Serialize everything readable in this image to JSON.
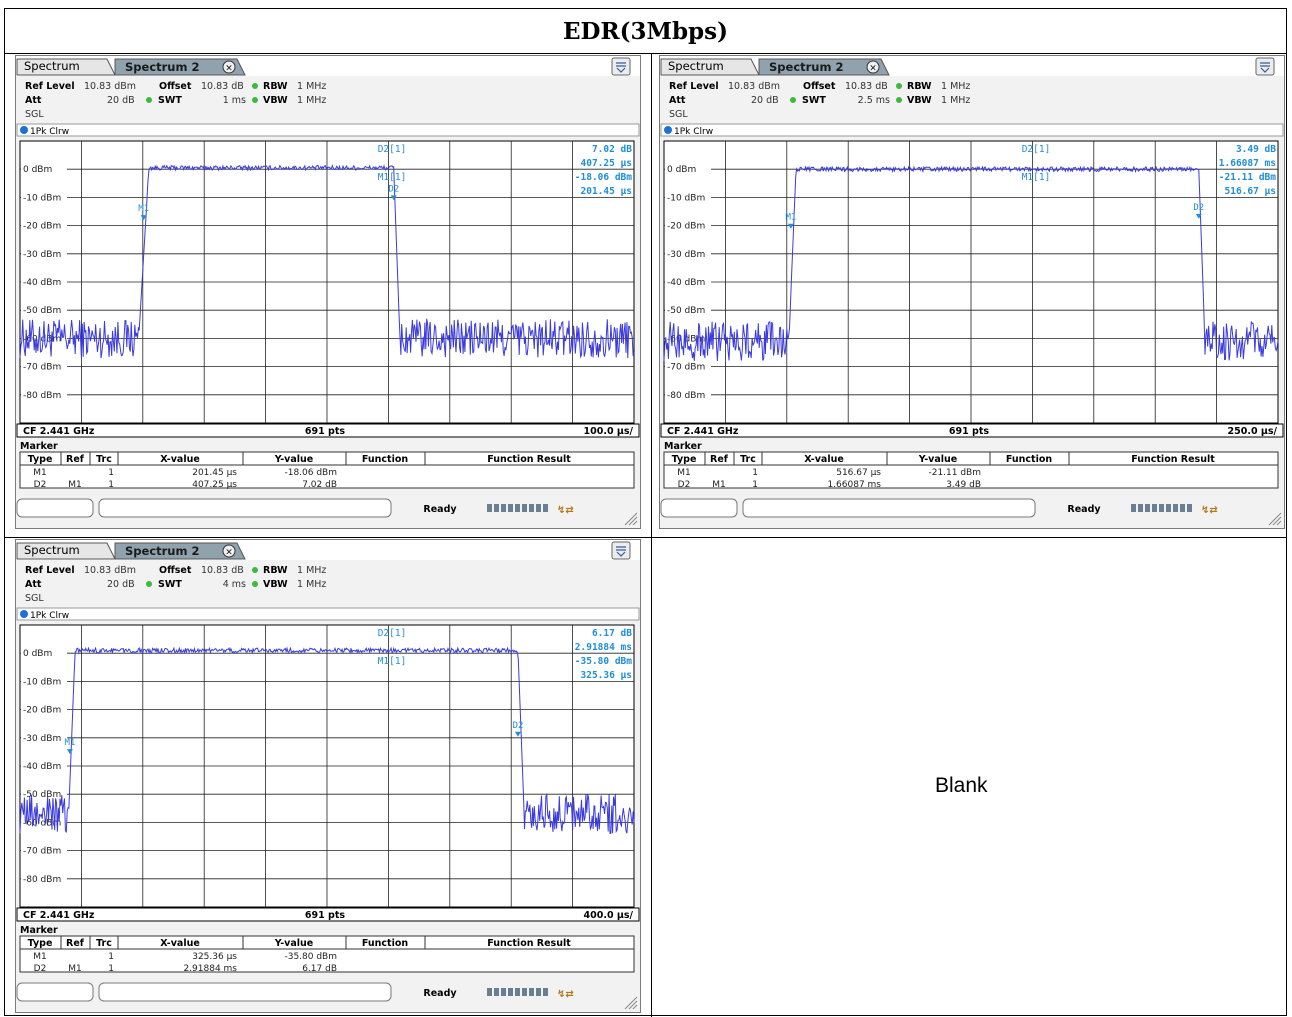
{
  "page_title": "EDR(3Mbps)",
  "blank_label": "Blank",
  "colors": {
    "trace": "#3a3ae0",
    "marker": "#1e8fd8",
    "grid": "#000000",
    "tab_active": "#d8d8d8",
    "tab_inactive": "#8fa8b8"
  },
  "panels": [
    {
      "tab_active": "Spectrum",
      "tab_inactive": "Spectrum 2",
      "ref_level_label": "Ref Level",
      "ref_level": "10.83 dBm",
      "offset_label": "Offset",
      "offset": "10.83 dB",
      "rbw_label": "RBW",
      "rbw": "1 MHz",
      "att_label": "Att",
      "att": "20 dB",
      "swt_label": "SWT",
      "swt": "1 ms",
      "vbw_label": "VBW",
      "vbw": "1 MHz",
      "sgl": "SGL",
      "trace_label": "1Pk Clrw",
      "delta_label": "D2[1]",
      "marker_label": "M1[1]",
      "readout": [
        "7.02 dB",
        "407.25 µs",
        "-18.06 dBm",
        "201.45 µs"
      ],
      "footer_left": "CF 2.441 GHz",
      "footer_mid": "691 pts",
      "footer_right": "100.0 µs/",
      "marker_title": "Marker",
      "table_headers": [
        "Type",
        "Ref",
        "Trc",
        "X-value",
        "Y-value",
        "Function",
        "Function Result"
      ],
      "table_rows": [
        [
          "M1",
          "",
          "1",
          "201.45 µs",
          "-18.06 dBm",
          "",
          ""
        ],
        [
          "D2",
          "M1",
          "1",
          "407.25 µs",
          "7.02 dB",
          "",
          ""
        ]
      ],
      "status": "Ready",
      "chart_data": {
        "type": "line",
        "ylabel": "dBm",
        "ylim": [
          -90,
          10
        ],
        "x_div": "100.0 µs/",
        "x_range_us": [
          0,
          1000
        ],
        "rise_us": 201.45,
        "fall_us": 608.7,
        "on_level_dbm": 0.5,
        "off_level_dbm": -60,
        "markers": [
          {
            "name": "M1",
            "x_us": 201.45,
            "y_dbm": -18.06
          },
          {
            "name": "D2",
            "x_us": 608.7,
            "y_dbm": -11.04
          }
        ]
      }
    },
    {
      "tab_active": "Spectrum",
      "tab_inactive": "Spectrum 2",
      "ref_level_label": "Ref Level",
      "ref_level": "10.83 dBm",
      "offset_label": "Offset",
      "offset": "10.83 dB",
      "rbw_label": "RBW",
      "rbw": "1 MHz",
      "att_label": "Att",
      "att": "20 dB",
      "swt_label": "SWT",
      "swt": "2.5 ms",
      "vbw_label": "VBW",
      "vbw": "1 MHz",
      "sgl": "SGL",
      "trace_label": "1Pk Clrw",
      "delta_label": "D2[1]",
      "marker_label": "M1[1]",
      "readout": [
        "3.49 dB",
        "1.66087 ms",
        "-21.11 dBm",
        "516.67 µs"
      ],
      "footer_left": "CF 2.441 GHz",
      "footer_mid": "691 pts",
      "footer_right": "250.0 µs/",
      "marker_title": "Marker",
      "table_headers": [
        "Type",
        "Ref",
        "Trc",
        "X-value",
        "Y-value",
        "Function",
        "Function Result"
      ],
      "table_rows": [
        [
          "M1",
          "",
          "1",
          "516.67 µs",
          "-21.11 dBm",
          "",
          ""
        ],
        [
          "D2",
          "M1",
          "1",
          "1.66087 ms",
          "3.49 dB",
          "",
          ""
        ]
      ],
      "status": "Ready",
      "chart_data": {
        "type": "line",
        "ylabel": "dBm",
        "ylim": [
          -90,
          10
        ],
        "x_div": "250.0 µs/",
        "x_range_us": [
          0,
          2500
        ],
        "rise_us": 516.67,
        "fall_us": 2177.5,
        "on_level_dbm": 0,
        "off_level_dbm": -61,
        "markers": [
          {
            "name": "M1",
            "x_us": 516.67,
            "y_dbm": -21.11
          },
          {
            "name": "D2",
            "x_us": 2177.5,
            "y_dbm": -17.62
          }
        ]
      }
    },
    {
      "tab_active": "Spectrum",
      "tab_inactive": "Spectrum 2",
      "ref_level_label": "Ref Level",
      "ref_level": "10.83 dBm",
      "offset_label": "Offset",
      "offset": "10.83 dB",
      "rbw_label": "RBW",
      "rbw": "1 MHz",
      "att_label": "Att",
      "att": "20 dB",
      "swt_label": "SWT",
      "swt": "4 ms",
      "vbw_label": "VBW",
      "vbw": "1 MHz",
      "sgl": "SGL",
      "trace_label": "1Pk Clrw",
      "delta_label": "D2[1]",
      "marker_label": "M1[1]",
      "readout": [
        "6.17 dB",
        "2.91884 ms",
        "-35.80 dBm",
        "325.36 µs"
      ],
      "footer_left": "CF 2.441 GHz",
      "footer_mid": "691 pts",
      "footer_right": "400.0 µs/",
      "marker_title": "Marker",
      "table_headers": [
        "Type",
        "Ref",
        "Trc",
        "X-value",
        "Y-value",
        "Function",
        "Function Result"
      ],
      "table_rows": [
        [
          "M1",
          "",
          "1",
          "325.36 µs",
          "-35.80 dBm",
          "",
          ""
        ],
        [
          "D2",
          "M1",
          "1",
          "2.91884 ms",
          "6.17 dB",
          "",
          ""
        ]
      ],
      "status": "Ready",
      "chart_data": {
        "type": "line",
        "ylabel": "dBm",
        "ylim": [
          -90,
          10
        ],
        "x_div": "400.0 µs/",
        "x_range_us": [
          0,
          4000
        ],
        "rise_us": 325.36,
        "fall_us": 3244.2,
        "on_level_dbm": 1,
        "off_level_dbm": -57,
        "markers": [
          {
            "name": "M1",
            "x_us": 325.36,
            "y_dbm": -35.8
          },
          {
            "name": "D2",
            "x_us": 3244.2,
            "y_dbm": -29.63
          }
        ]
      }
    }
  ],
  "y_tick_labels": [
    "0 dBm",
    "-10 dBm",
    "-20 dBm",
    "-30 dBm",
    "-40 dBm",
    "-50 dBm",
    "-60 dBm",
    "-70 dBm",
    "-80 dBm"
  ]
}
